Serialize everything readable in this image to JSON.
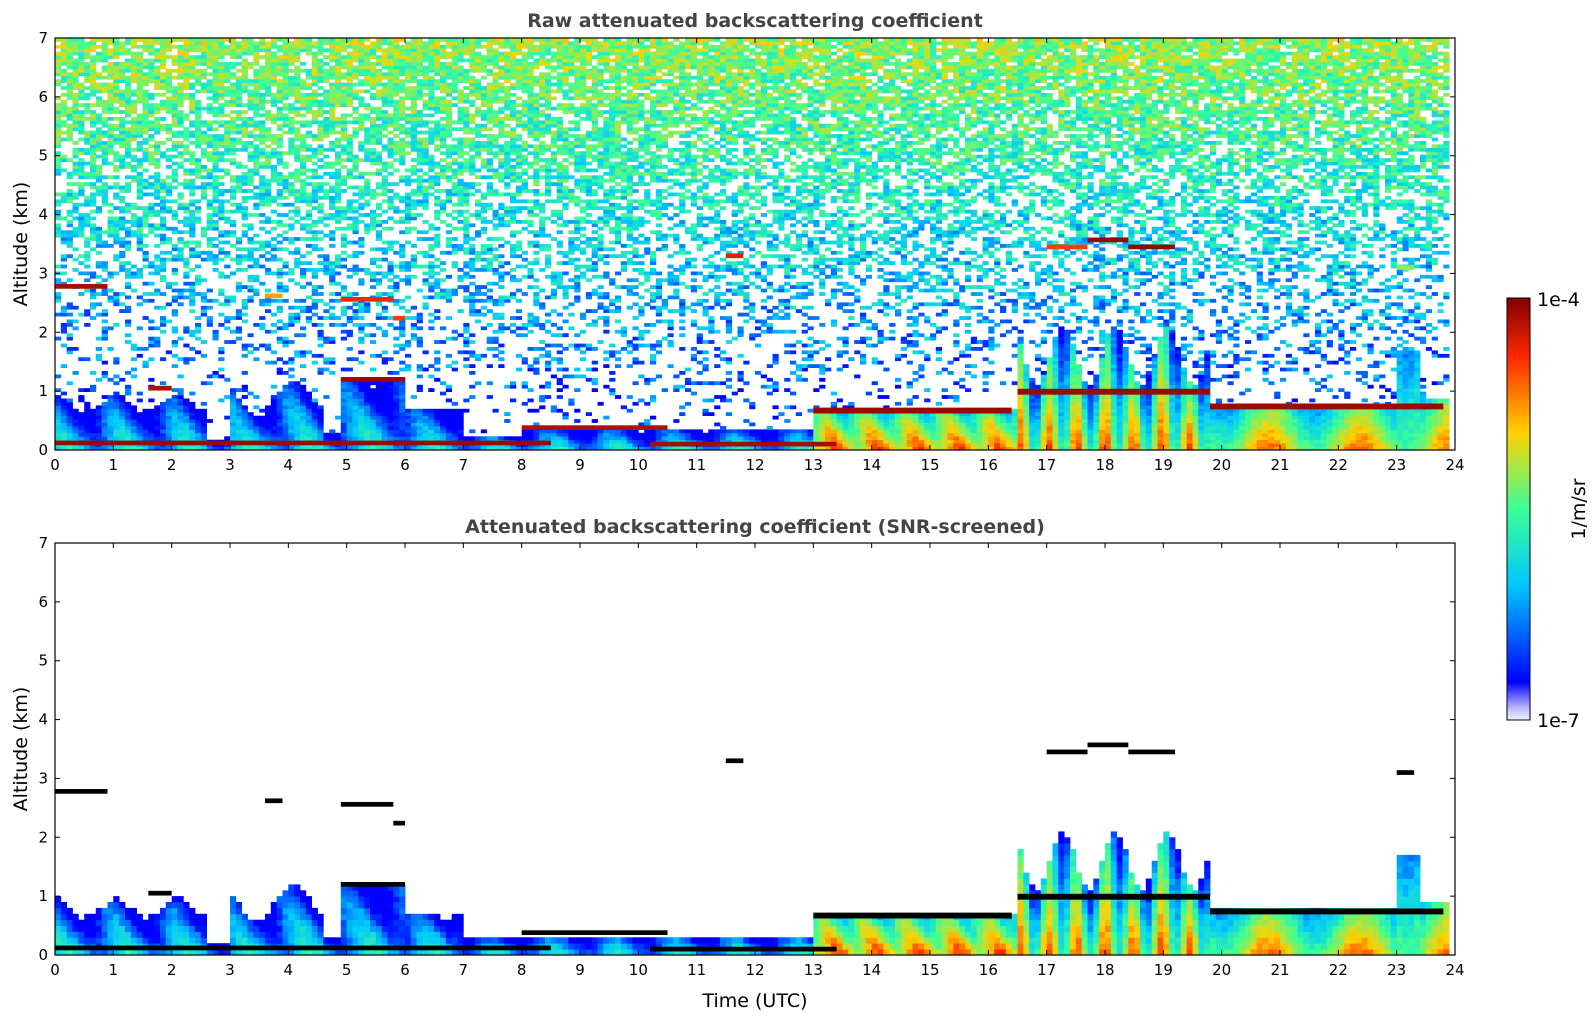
{
  "chart_data": [
    {
      "type": "heatmap",
      "title": "Raw attenuated backscattering coefficient",
      "xlabel": "",
      "ylabel": "Altitude (km)",
      "xlim": [
        0,
        24
      ],
      "ylim": [
        0,
        7
      ],
      "xticks": [
        "0",
        "1",
        "2",
        "3",
        "4",
        "5",
        "6",
        "7",
        "8",
        "9",
        "10",
        "11",
        "12",
        "13",
        "14",
        "15",
        "16",
        "17",
        "18",
        "19",
        "20",
        "21",
        "22",
        "23",
        "24"
      ],
      "yticks": [
        "0",
        "1",
        "2",
        "3",
        "4",
        "5",
        "6",
        "7"
      ],
      "screened": false,
      "layers": [
        {
          "t0": 0.0,
          "t1": 0.9,
          "alt": 2.78,
          "level": 0.96
        },
        {
          "t0": 3.6,
          "t1": 3.9,
          "alt": 2.62,
          "level": 0.75
        },
        {
          "t0": 4.9,
          "t1": 5.8,
          "alt": 2.56,
          "level": 0.88
        },
        {
          "t0": 5.8,
          "t1": 6.0,
          "alt": 2.24,
          "level": 0.85
        },
        {
          "t0": 11.5,
          "t1": 11.8,
          "alt": 3.3,
          "level": 0.9
        },
        {
          "t0": 17.0,
          "t1": 17.7,
          "alt": 3.45,
          "level": 0.85
        },
        {
          "t0": 17.7,
          "t1": 18.4,
          "alt": 3.57,
          "level": 0.98
        },
        {
          "t0": 18.4,
          "t1": 19.2,
          "alt": 3.45,
          "level": 0.98
        },
        {
          "t0": 23.0,
          "t1": 23.3,
          "alt": 3.1,
          "level": 0.6
        },
        {
          "t0": 1.6,
          "t1": 2.0,
          "alt": 1.05,
          "level": 0.95
        },
        {
          "t0": 4.9,
          "t1": 6.0,
          "alt": 1.2,
          "level": 0.97
        },
        {
          "t0": 0.0,
          "t1": 8.5,
          "alt": 0.12,
          "level": 0.97
        },
        {
          "t0": 8.0,
          "t1": 10.5,
          "alt": 0.38,
          "level": 0.95
        },
        {
          "t0": 10.2,
          "t1": 13.4,
          "alt": 0.1,
          "level": 0.96
        }
      ],
      "boundary_layer": [
        {
          "t0": 13.0,
          "t1": 16.4,
          "top": 0.68,
          "level": 0.82
        },
        {
          "t0": 16.5,
          "t1": 19.8,
          "top": 1.0,
          "level": 0.6
        },
        {
          "t0": 19.8,
          "t1": 23.8,
          "top": 0.75,
          "level": 0.8
        }
      ]
    },
    {
      "type": "heatmap",
      "title": "Attenuated backscattering coefficient (SNR-screened)",
      "xlabel": "Time (UTC)",
      "ylabel": "Altitude (km)",
      "xlim": [
        0,
        24
      ],
      "ylim": [
        0,
        7
      ],
      "xticks": [
        "0",
        "1",
        "2",
        "3",
        "4",
        "5",
        "6",
        "7",
        "8",
        "9",
        "10",
        "11",
        "12",
        "13",
        "14",
        "15",
        "16",
        "17",
        "18",
        "19",
        "20",
        "21",
        "22",
        "23",
        "24"
      ],
      "yticks": [
        "0",
        "1",
        "2",
        "3",
        "4",
        "5",
        "6",
        "7"
      ],
      "screened": true,
      "saturated_color": "#000000"
    }
  ],
  "colorbar": {
    "label": "1/m/sr",
    "max_label": "1e-4",
    "min_label": "1e-7",
    "colormap": "jet",
    "scale": "log"
  }
}
